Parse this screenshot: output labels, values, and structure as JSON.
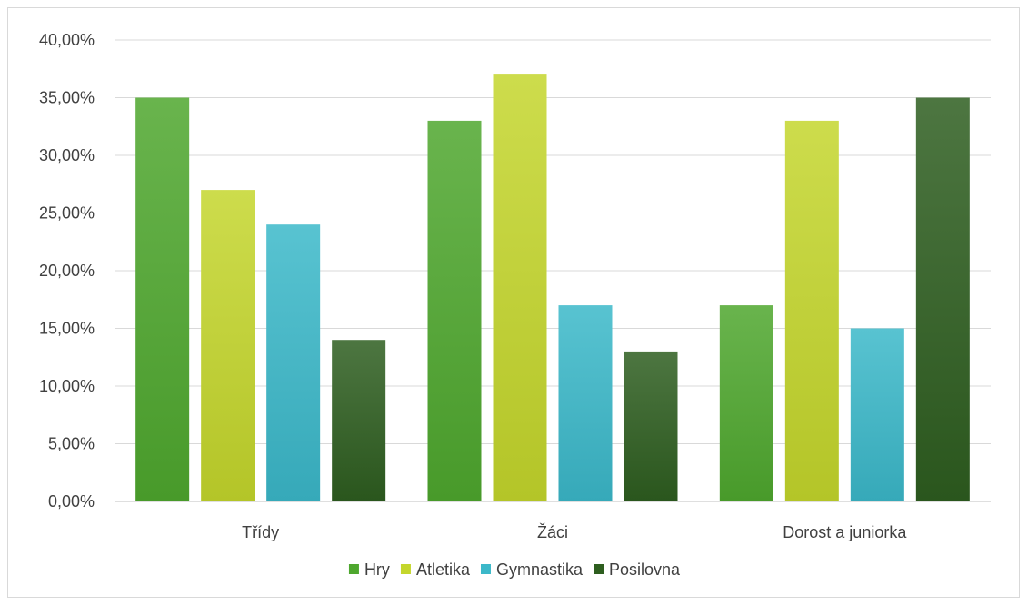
{
  "chart_data": {
    "type": "bar",
    "title": "",
    "xlabel": "",
    "ylabel": "",
    "categories": [
      "Třídy",
      "Žáci",
      "Dorost a juniorka"
    ],
    "series": [
      {
        "name": "Hry",
        "values": [
          35,
          33,
          17
        ],
        "color": "#4ea72e"
      },
      {
        "name": "Atletika",
        "values": [
          27,
          37,
          33
        ],
        "color": "#c4d62c"
      },
      {
        "name": "Gymnastika",
        "values": [
          24,
          17,
          15
        ],
        "color": "#3bb8c9"
      },
      {
        "name": "Posilovna",
        "values": [
          14,
          13,
          35
        ],
        "color": "#2e5e1f"
      }
    ],
    "ylim": [
      0,
      40
    ],
    "yticks": [
      0,
      5,
      10,
      15,
      20,
      25,
      30,
      35,
      40
    ],
    "ytick_labels": [
      "0,00%",
      "5,00%",
      "10,00%",
      "15,00%",
      "20,00%",
      "25,00%",
      "30,00%",
      "35,00%",
      "40,00%"
    ],
    "grid": true,
    "legend_position": "bottom"
  }
}
